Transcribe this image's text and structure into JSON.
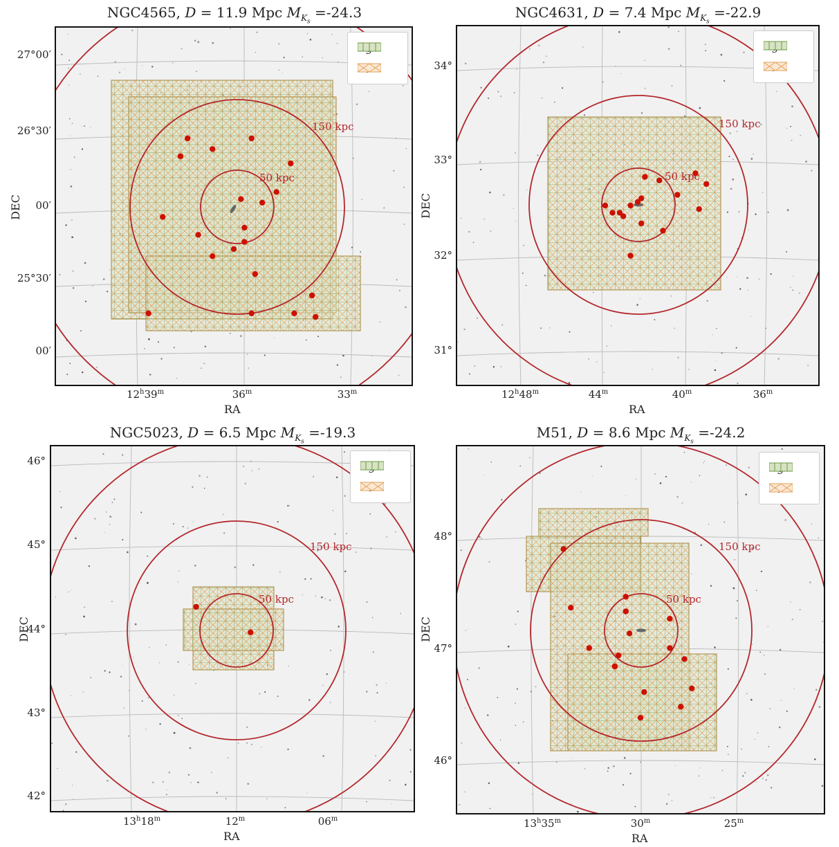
{
  "shared": {
    "ring_color": "#b3262b",
    "dot_color": "#cc1100",
    "g_color": "#6e9a45",
    "r_color": "#e2a25c",
    "background_color": "#f1f1f1",
    "xlabel": "RA",
    "ylabel": "DEC"
  },
  "chart_data": [
    {
      "type": "scatter",
      "title_name": "NGC4565",
      "title_D": "11.9",
      "title_MK": "-24.3",
      "legend": [
        "g",
        "r"
      ],
      "rings": [
        "150 kpc",
        "50 kpc"
      ],
      "yticks": [
        "27°00′",
        "26°30′",
        "00′",
        "25°30′",
        "00′"
      ],
      "xticks_main": [
        "12",
        "",
        ""
      ],
      "xticks_sup": [
        "h",
        "",
        ""
      ],
      "xticks_val": [
        "39",
        "36",
        "33"
      ],
      "xticks_unit": [
        "m",
        "m",
        "m"
      ],
      "satellites": [
        [
          0.37,
          0.31
        ],
        [
          0.35,
          0.36
        ],
        [
          0.44,
          0.34
        ],
        [
          0.55,
          0.31
        ],
        [
          0.66,
          0.38
        ],
        [
          0.62,
          0.46
        ],
        [
          0.58,
          0.49
        ],
        [
          0.52,
          0.48
        ],
        [
          0.3,
          0.53
        ],
        [
          0.4,
          0.58
        ],
        [
          0.44,
          0.64
        ],
        [
          0.5,
          0.62
        ],
        [
          0.53,
          0.6
        ],
        [
          0.53,
          0.56
        ],
        [
          0.56,
          0.69
        ],
        [
          0.26,
          0.8
        ],
        [
          0.55,
          0.8
        ],
        [
          0.67,
          0.8
        ],
        [
          0.72,
          0.75
        ],
        [
          0.73,
          0.81
        ]
      ]
    },
    {
      "type": "scatter",
      "title_name": "NGC4631",
      "title_D": "7.4",
      "title_MK": "-22.9",
      "legend": [
        "g",
        "r"
      ],
      "rings": [
        "150 kpc",
        "50 kpc"
      ],
      "yticks": [
        "34°",
        "33°",
        "32°",
        "31°"
      ],
      "xticks_main": [
        "12",
        "",
        "",
        ""
      ],
      "xticks_sup": [
        "h",
        "",
        "",
        ""
      ],
      "xticks_val": [
        "48",
        "44",
        "40",
        "36"
      ],
      "xticks_unit": [
        "m",
        "m",
        "m",
        "m"
      ],
      "satellites": [
        [
          0.52,
          0.42
        ],
        [
          0.56,
          0.43
        ],
        [
          0.66,
          0.41
        ],
        [
          0.69,
          0.44
        ],
        [
          0.61,
          0.47
        ],
        [
          0.41,
          0.5
        ],
        [
          0.43,
          0.52
        ],
        [
          0.45,
          0.52
        ],
        [
          0.46,
          0.53
        ],
        [
          0.48,
          0.5
        ],
        [
          0.5,
          0.49
        ],
        [
          0.51,
          0.48
        ],
        [
          0.51,
          0.55
        ],
        [
          0.57,
          0.57
        ],
        [
          0.67,
          0.51
        ],
        [
          0.48,
          0.64
        ]
      ]
    },
    {
      "type": "scatter",
      "title_name": "NGC5023",
      "title_D": "6.5",
      "title_MK": "-19.3",
      "legend": [
        "g",
        "i"
      ],
      "rings": [
        "150 kpc",
        "50 kpc"
      ],
      "yticks": [
        "46°",
        "45°",
        "44°",
        "43°",
        "42°"
      ],
      "xticks_main": [
        "13",
        "",
        ""
      ],
      "xticks_sup": [
        "h",
        "",
        ""
      ],
      "xticks_val": [
        "18",
        "12",
        "06"
      ],
      "xticks_unit": [
        "m",
        "m",
        "m"
      ],
      "satellites": [
        [
          0.4,
          0.44
        ],
        [
          0.55,
          0.51
        ]
      ]
    },
    {
      "type": "scatter",
      "title_name": "M51",
      "title_D": "8.6",
      "title_MK": "-24.2",
      "legend": [
        "g",
        "r"
      ],
      "rings": [
        "150 kpc",
        "50 kpc"
      ],
      "yticks": [
        "48°",
        "47°",
        "46°"
      ],
      "xticks_main": [
        "13",
        "",
        ""
      ],
      "xticks_sup": [
        "h",
        "",
        ""
      ],
      "xticks_val": [
        "35",
        "30",
        "25"
      ],
      "xticks_unit": [
        "m",
        "m",
        "m"
      ],
      "satellites": [
        [
          0.29,
          0.28
        ],
        [
          0.46,
          0.41
        ],
        [
          0.31,
          0.44
        ],
        [
          0.46,
          0.45
        ],
        [
          0.58,
          0.47
        ],
        [
          0.47,
          0.51
        ],
        [
          0.36,
          0.55
        ],
        [
          0.58,
          0.55
        ],
        [
          0.44,
          0.57
        ],
        [
          0.62,
          0.58
        ],
        [
          0.43,
          0.6
        ],
        [
          0.64,
          0.66
        ],
        [
          0.51,
          0.67
        ],
        [
          0.61,
          0.71
        ],
        [
          0.5,
          0.74
        ]
      ]
    }
  ]
}
